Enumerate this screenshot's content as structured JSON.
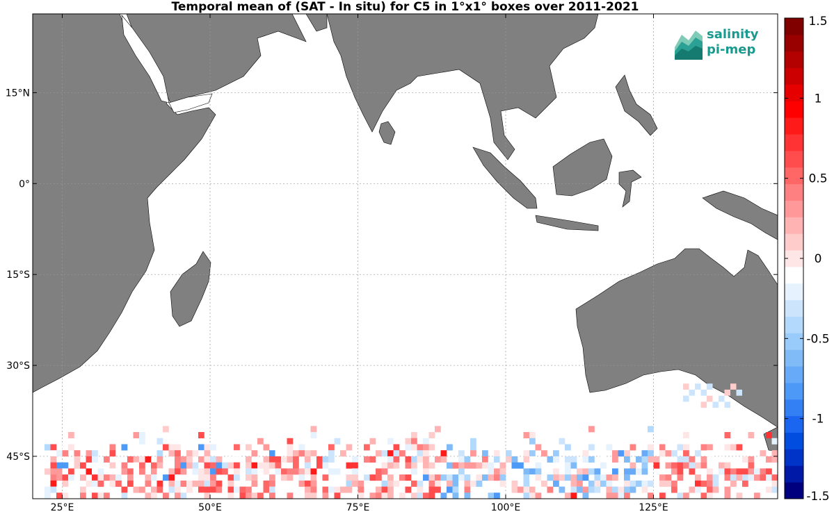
{
  "title": "Temporal mean of (SAT - In situ) for C5 in 1°x1° boxes over 2011-2021",
  "logo": {
    "line1": "salinity",
    "line2": "pi-mep",
    "icon": "salinity-pimep-logo"
  },
  "map": {
    "lon_range": [
      20,
      146
    ],
    "lat_range": [
      -52,
      28
    ],
    "lat_ticks": [
      {
        "value": 15,
        "label": "15°N"
      },
      {
        "value": 0,
        "label": "0°"
      },
      {
        "value": -15,
        "label": "15°S"
      },
      {
        "value": -30,
        "label": "30°S"
      },
      {
        "value": -45,
        "label": "45°S"
      }
    ],
    "lon_ticks": [
      {
        "value": 25,
        "label": "25°E"
      },
      {
        "value": 50,
        "label": "50°E"
      },
      {
        "value": 75,
        "label": "75°E"
      },
      {
        "value": 100,
        "label": "100°E"
      },
      {
        "value": 125,
        "label": "125°E"
      }
    ],
    "land_color": "#808080",
    "grid": "dotted"
  },
  "colorbar": {
    "min": -1.5,
    "max": 1.5,
    "ticks": [
      {
        "value": 1.5,
        "label": "1.5"
      },
      {
        "value": 1,
        "label": "1"
      },
      {
        "value": 0.5,
        "label": "0.5"
      },
      {
        "value": 0,
        "label": "0"
      },
      {
        "value": -0.5,
        "label": "-0.5"
      },
      {
        "value": -1,
        "label": "-1"
      },
      {
        "value": -1.5,
        "label": "-1.5"
      }
    ],
    "colors": [
      "#00007f",
      "#0019a6",
      "#0033c8",
      "#004de0",
      "#1a66f0",
      "#3380f5",
      "#4d99f8",
      "#66aaf8",
      "#80bbf8",
      "#99ccfa",
      "#b3d9fc",
      "#cce5fd",
      "#e6f2fe",
      "#ffffff",
      "#ffe6e6",
      "#ffcccc",
      "#ffb3b3",
      "#ff9999",
      "#ff8080",
      "#ff6666",
      "#ff4d4d",
      "#ff3333",
      "#ff1a1a",
      "#ff0000",
      "#e60000",
      "#cc0000",
      "#b30000",
      "#990000",
      "#800000"
    ]
  }
}
